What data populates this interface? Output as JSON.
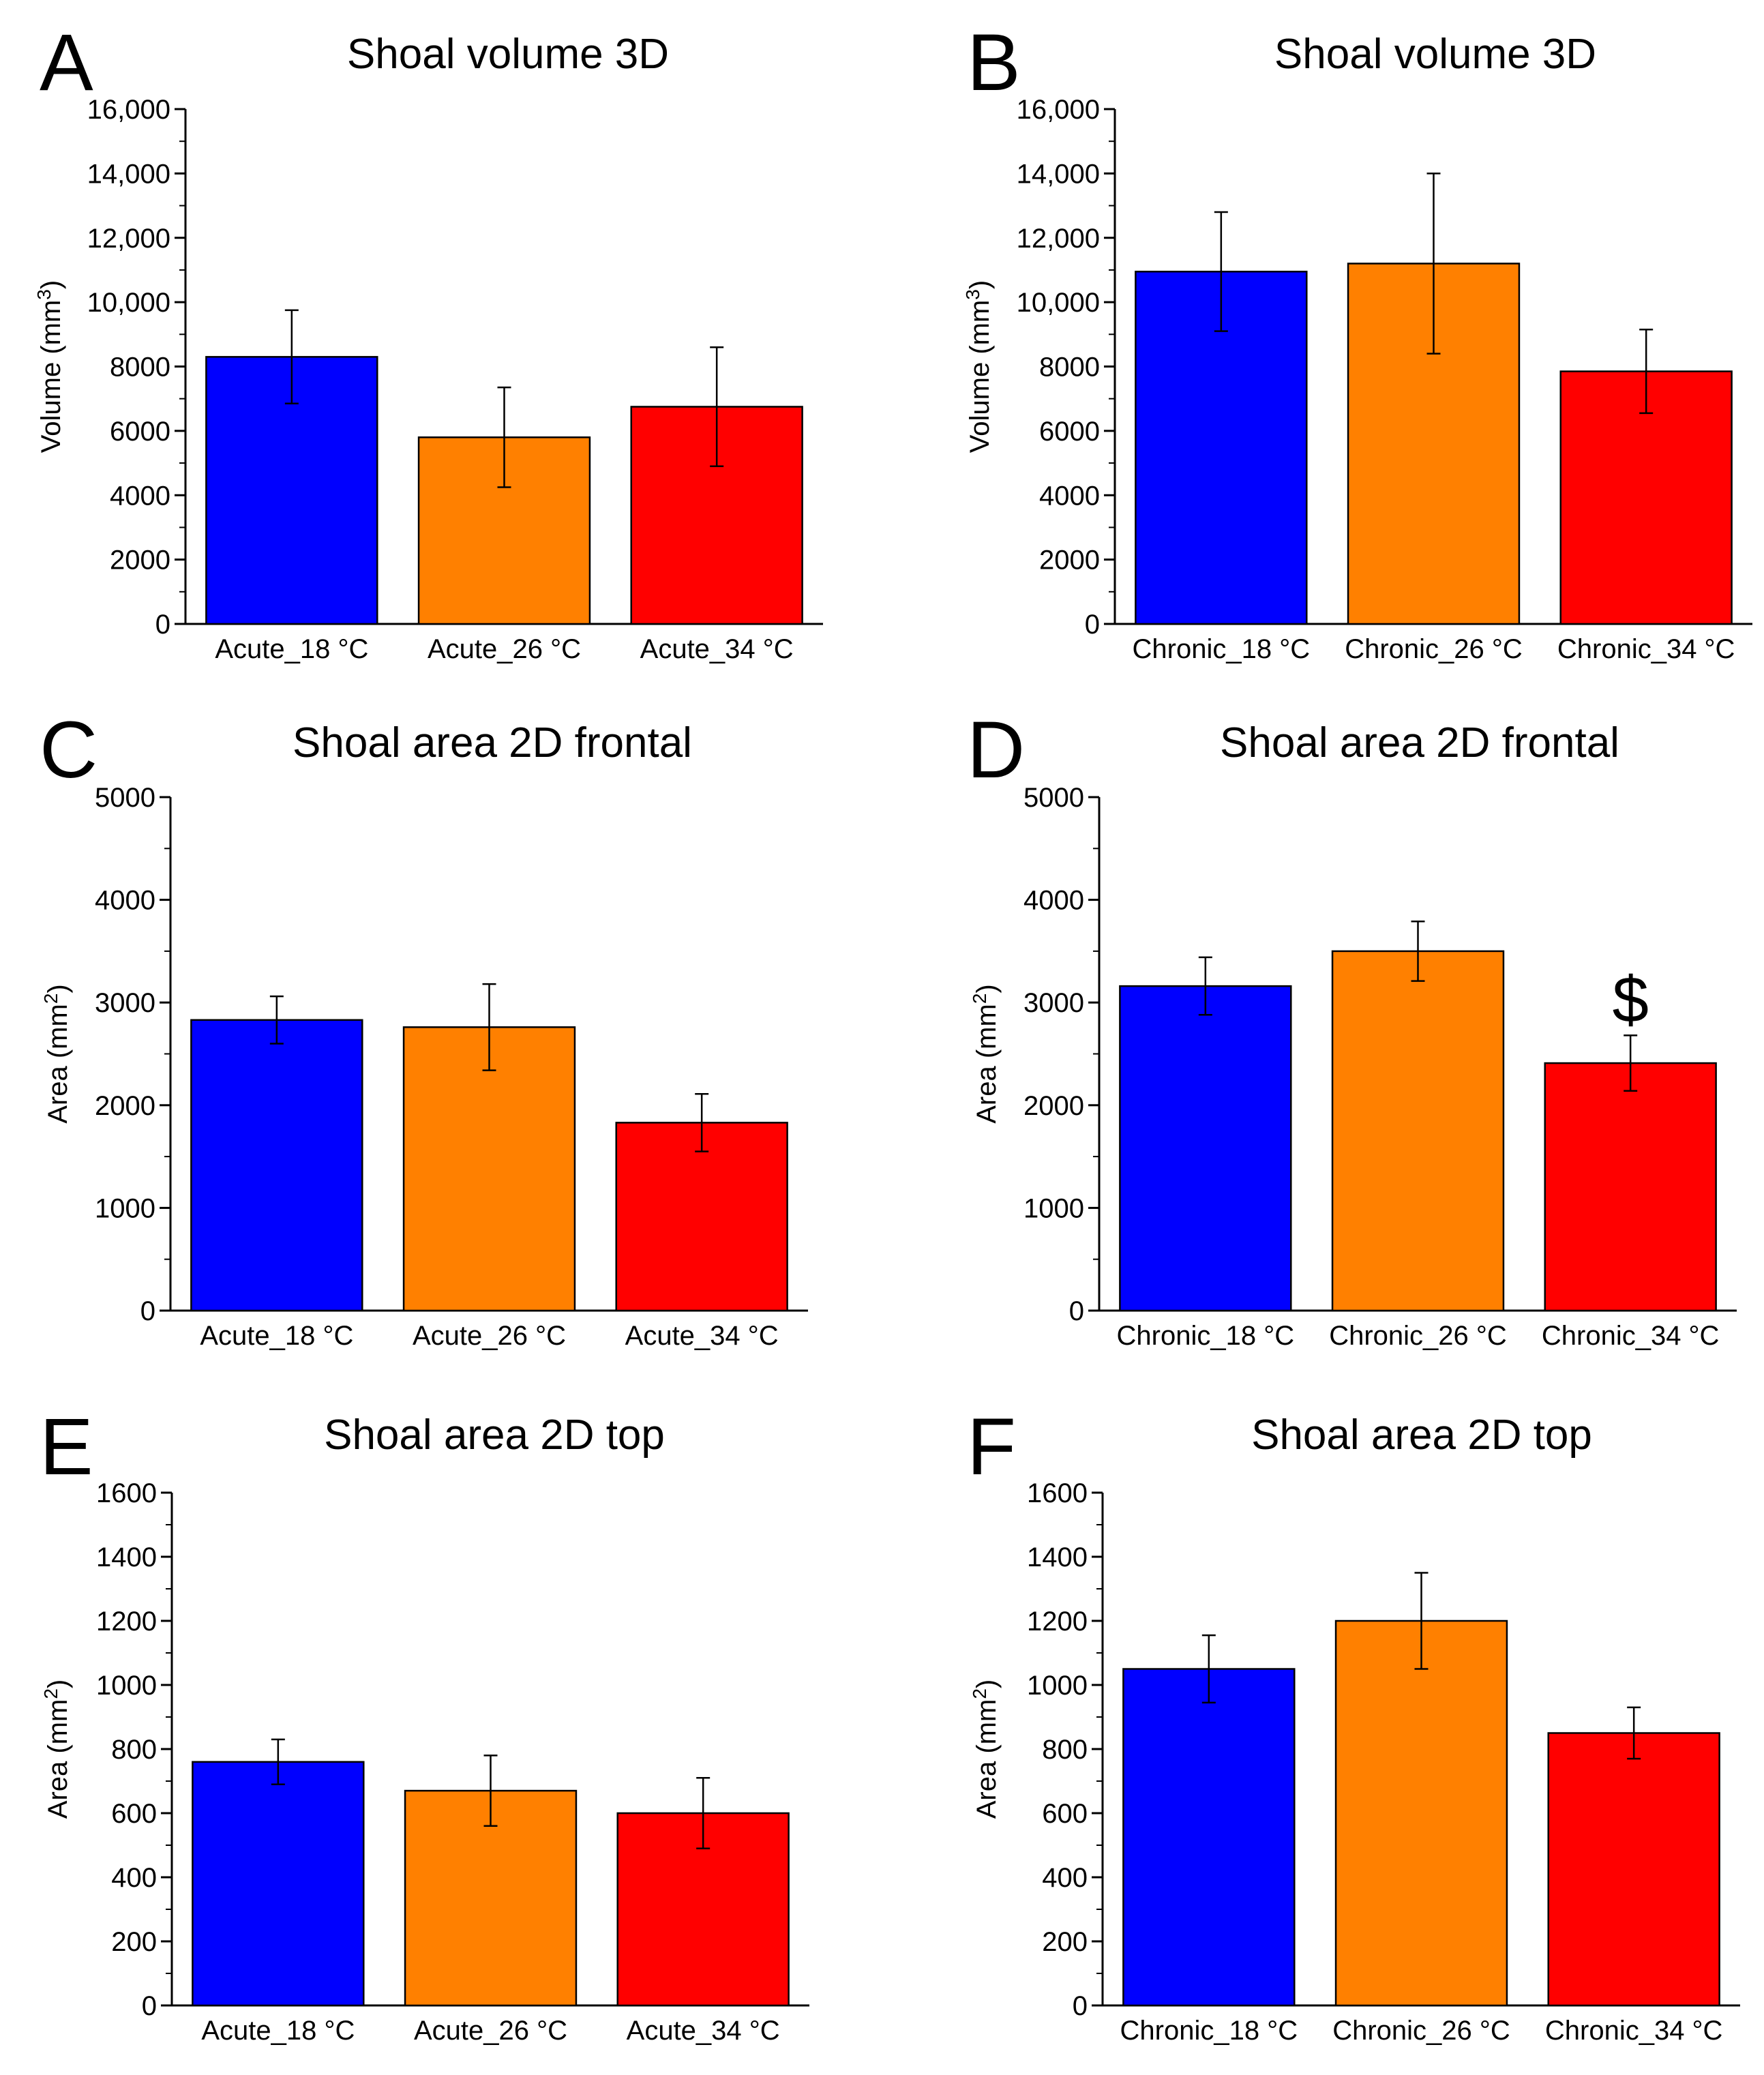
{
  "figure": {
    "panels": [
      {
        "letter": "A",
        "ytitle": "Volume",
        "yunit": "mm",
        "yexp": "3"
      },
      {
        "letter": "B",
        "ytitle": "Volume",
        "yunit": "mm",
        "yexp": "3"
      },
      {
        "letter": "C",
        "ytitle": "Area",
        "yunit": "mm",
        "yexp": "2"
      },
      {
        "letter": "D",
        "ytitle": "Area",
        "yunit": "mm",
        "yexp": "2"
      },
      {
        "letter": "E",
        "ytitle": "Area",
        "yunit": "mm",
        "yexp": "2"
      },
      {
        "letter": "F",
        "ytitle": "Area",
        "yunit": "mm",
        "yexp": "2"
      }
    ]
  },
  "colors": {
    "bar_18": "#0000ff",
    "bar_26": "#ff8000",
    "bar_34": "#ff0000",
    "axis": "#000000"
  },
  "chart_data": [
    {
      "type": "bar",
      "title": "Shoal volume 3D",
      "categories": [
        "Acute_18 °C",
        "Acute_26 °C",
        "Acute_34 °C"
      ],
      "values": [
        8300,
        5800,
        6750
      ],
      "errors": [
        1450,
        1550,
        1850
      ],
      "ylabel": "Volume (mm3)",
      "ylim": [
        0,
        16000
      ],
      "yticks": [
        0,
        2000,
        4000,
        6000,
        8000,
        10000,
        12000,
        14000,
        16000
      ],
      "yticklabels": [
        "0",
        "2000",
        "4000",
        "6000",
        "8000",
        "10,000",
        "12,000",
        "14,000",
        "16,000"
      ],
      "annotations": []
    },
    {
      "type": "bar",
      "title": "Shoal volume 3D",
      "categories": [
        "Chronic_18 °C",
        "Chronic_26 °C",
        "Chronic_34 °C"
      ],
      "values": [
        10950,
        11200,
        7850
      ],
      "errors": [
        1850,
        2800,
        1300
      ],
      "ylabel": "Volume (mm3)",
      "ylim": [
        0,
        16000
      ],
      "yticks": [
        0,
        2000,
        4000,
        6000,
        8000,
        10000,
        12000,
        14000,
        16000
      ],
      "yticklabels": [
        "0",
        "2000",
        "4000",
        "6000",
        "8000",
        "10,000",
        "12,000",
        "14,000",
        "16,000"
      ],
      "annotations": []
    },
    {
      "type": "bar",
      "title": "Shoal area 2D frontal",
      "categories": [
        "Acute_18 °C",
        "Acute_26 °C",
        "Acute_34 °C"
      ],
      "values": [
        2830,
        2760,
        1830
      ],
      "errors": [
        230,
        420,
        280
      ],
      "ylabel": "Area (mm2)",
      "ylim": [
        0,
        5000
      ],
      "yticks": [
        0,
        1000,
        2000,
        3000,
        4000,
        5000
      ],
      "yticklabels": [
        "0",
        "1000",
        "2000",
        "3000",
        "4000",
        "5000"
      ],
      "annotations": []
    },
    {
      "type": "bar",
      "title": "Shoal area 2D frontal",
      "categories": [
        "Chronic_18 °C",
        "Chronic_26 °C",
        "Chronic_34 °C"
      ],
      "values": [
        3160,
        3500,
        2410
      ],
      "errors": [
        280,
        290,
        270
      ],
      "ylabel": "Area (mm2)",
      "ylim": [
        0,
        5000
      ],
      "yticks": [
        0,
        1000,
        2000,
        3000,
        4000,
        5000
      ],
      "yticklabels": [
        "0",
        "1000",
        "2000",
        "3000",
        "4000",
        "5000"
      ],
      "annotations": [
        {
          "text": "$",
          "category": "Chronic_34 °C"
        }
      ]
    },
    {
      "type": "bar",
      "title": "Shoal area 2D top",
      "categories": [
        "Acute_18 °C",
        "Acute_26 °C",
        "Acute_34 °C"
      ],
      "values": [
        760,
        670,
        600
      ],
      "errors": [
        70,
        110,
        110
      ],
      "ylabel": "Area (mm2)",
      "ylim": [
        0,
        1600
      ],
      "yticks": [
        0,
        200,
        400,
        600,
        800,
        1000,
        1200,
        1400,
        1600
      ],
      "yticklabels": [
        "0",
        "200",
        "400",
        "600",
        "800",
        "1000",
        "1200",
        "1400",
        "1600"
      ],
      "annotations": []
    },
    {
      "type": "bar",
      "title": "Shoal area 2D top",
      "categories": [
        "Chronic_18 °C",
        "Chronic_26 °C",
        "Chronic_34 °C"
      ],
      "values": [
        1050,
        1200,
        850
      ],
      "errors": [
        105,
        150,
        80
      ],
      "ylabel": "Area (mm2)",
      "ylim": [
        0,
        1600
      ],
      "yticks": [
        0,
        200,
        400,
        600,
        800,
        1000,
        1200,
        1400,
        1600
      ],
      "yticklabels": [
        "0",
        "200",
        "400",
        "600",
        "800",
        "1000",
        "1200",
        "1400",
        "1600"
      ],
      "annotations": []
    }
  ]
}
